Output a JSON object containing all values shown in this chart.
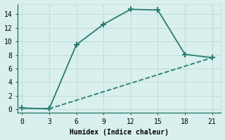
{
  "line1_x": [
    0,
    3,
    6,
    9,
    12,
    15,
    18,
    21
  ],
  "line1_y": [
    0.2,
    0.1,
    9.5,
    12.5,
    14.7,
    14.6,
    8.1,
    7.6
  ],
  "line2_x": [
    0,
    3,
    21
  ],
  "line2_y": [
    0.2,
    0.1,
    7.6
  ],
  "line_color": "#2a7d6e",
  "bg_color": "#d9f0ee",
  "grid_color": "#c0deda",
  "xlabel": "Humidex (Indice chaleur)",
  "xlim": [
    -0.5,
    22
  ],
  "ylim": [
    -0.5,
    15.5
  ],
  "xticks": [
    0,
    3,
    6,
    9,
    12,
    15,
    18,
    21
  ],
  "yticks": [
    0,
    2,
    4,
    6,
    8,
    10,
    12,
    14
  ],
  "marker1": "+",
  "marker2": "None",
  "marker_size": 6,
  "linewidth": 1.3,
  "linestyle2": "--"
}
